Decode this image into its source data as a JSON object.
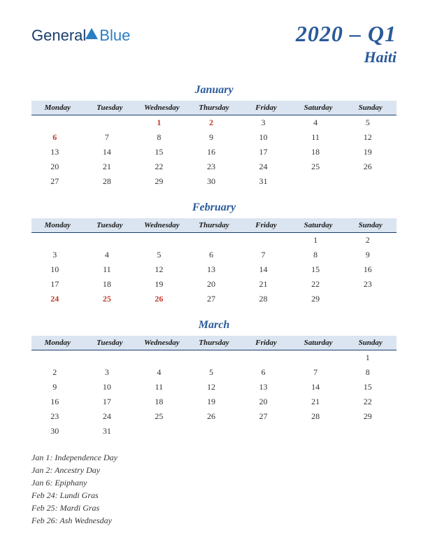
{
  "logo": {
    "part1": "General",
    "part2": "Blue"
  },
  "header": {
    "title": "2020 – Q1",
    "subtitle": "Haiti"
  },
  "columns": [
    "Monday",
    "Tuesday",
    "Wednesday",
    "Thursday",
    "Friday",
    "Saturday",
    "Sunday"
  ],
  "styling": {
    "header_bg": "#dbe5f1",
    "accent_color": "#2a5a9a",
    "holiday_color": "#c0392b",
    "text_color": "#333333",
    "border_color": "#1a3d6d",
    "month_title_fontsize": 16,
    "weekday_fontsize": 11,
    "cell_fontsize": 12
  },
  "months": [
    {
      "name": "January",
      "rows": [
        [
          "",
          "",
          "1",
          "2",
          "3",
          "4",
          "5"
        ],
        [
          "6",
          "7",
          "8",
          "9",
          "10",
          "11",
          "12"
        ],
        [
          "13",
          "14",
          "15",
          "16",
          "17",
          "18",
          "19"
        ],
        [
          "20",
          "21",
          "22",
          "23",
          "24",
          "25",
          "26"
        ],
        [
          "27",
          "28",
          "29",
          "30",
          "31",
          "",
          ""
        ]
      ],
      "holidays": [
        [
          0,
          2
        ],
        [
          0,
          3
        ],
        [
          1,
          0
        ]
      ]
    },
    {
      "name": "February",
      "rows": [
        [
          "",
          "",
          "",
          "",
          "",
          "1",
          "2"
        ],
        [
          "3",
          "4",
          "5",
          "6",
          "7",
          "8",
          "9"
        ],
        [
          "10",
          "11",
          "12",
          "13",
          "14",
          "15",
          "16"
        ],
        [
          "17",
          "18",
          "19",
          "20",
          "21",
          "22",
          "23"
        ],
        [
          "24",
          "25",
          "26",
          "27",
          "28",
          "29",
          ""
        ]
      ],
      "holidays": [
        [
          4,
          0
        ],
        [
          4,
          1
        ],
        [
          4,
          2
        ]
      ]
    },
    {
      "name": "March",
      "rows": [
        [
          "",
          "",
          "",
          "",
          "",
          "",
          "1"
        ],
        [
          "2",
          "3",
          "4",
          "5",
          "6",
          "7",
          "8"
        ],
        [
          "9",
          "10",
          "11",
          "12",
          "13",
          "14",
          "15"
        ],
        [
          "16",
          "17",
          "18",
          "19",
          "20",
          "21",
          "22"
        ],
        [
          "23",
          "24",
          "25",
          "26",
          "27",
          "28",
          "29"
        ],
        [
          "30",
          "31",
          "",
          "",
          "",
          "",
          ""
        ]
      ],
      "holidays": []
    }
  ],
  "holiday_list": [
    "Jan 1: Independence Day",
    "Jan 2: Ancestry Day",
    "Jan 6: Epiphany",
    "Feb 24: Lundi Gras",
    "Feb 25: Mardi Gras",
    "Feb 26: Ash Wednesday"
  ]
}
